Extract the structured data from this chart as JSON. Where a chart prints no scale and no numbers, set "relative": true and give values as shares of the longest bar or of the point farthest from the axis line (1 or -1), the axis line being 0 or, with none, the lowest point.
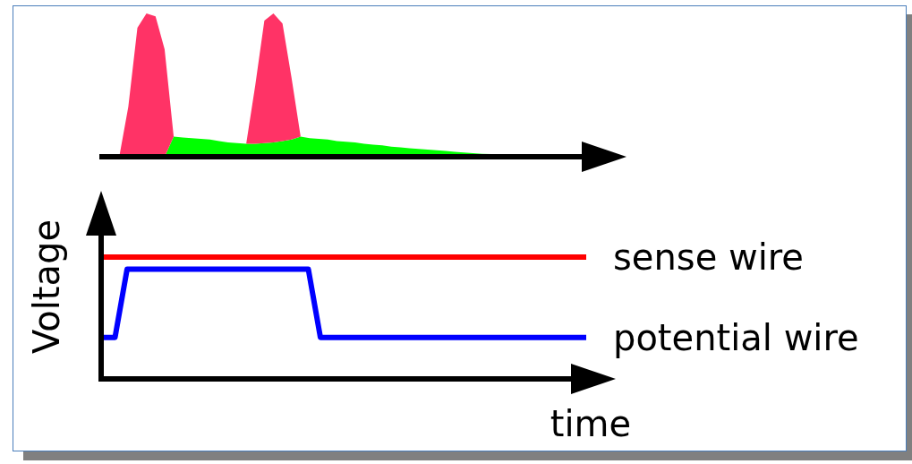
{
  "chart_data": [
    {
      "type": "area",
      "relative": true,
      "categories": [
        null,
        null,
        null,
        null,
        null,
        null,
        null,
        null,
        null,
        null,
        null,
        null,
        null,
        null,
        null,
        null,
        null,
        null,
        null,
        null,
        null,
        null,
        null,
        null,
        null,
        null,
        null,
        null,
        null,
        null,
        null,
        null,
        null,
        null,
        null,
        null,
        null,
        null,
        null,
        null,
        null,
        null,
        null,
        null,
        null,
        null,
        null,
        null,
        null,
        null,
        null,
        null,
        null,
        null
      ],
      "series": [
        {
          "color": "#00ff00",
          "values": [
            0,
            0,
            0,
            0,
            0,
            0,
            0,
            0,
            0.14,
            0.135,
            0.13,
            0.125,
            0.12,
            0.11,
            0.1,
            0.095,
            0.09,
            0.09,
            0.095,
            0.1,
            0.11,
            0.12,
            0.14,
            0.13,
            0.125,
            0.12,
            0.11,
            0.105,
            0.1,
            0.09,
            0.085,
            0.08,
            0.07,
            0.065,
            0.06,
            0.055,
            0.05,
            0.045,
            0.04,
            0.035,
            0.03,
            0.025,
            0.02,
            0.018,
            0.015,
            0.012,
            0.01,
            0.008,
            0.006,
            0.004,
            0.002,
            0,
            0,
            0
          ]
        },
        {
          "color": "#ff3366",
          "values": [
            0,
            0,
            0,
            0.35,
            0.9,
            1,
            0.98,
            0.75,
            0,
            0,
            0,
            0,
            0,
            0,
            0,
            0,
            0,
            0.41,
            0.855,
            0.9,
            0.82,
            0.43,
            0,
            0,
            0,
            0,
            0,
            0,
            0,
            0,
            0,
            0,
            0,
            0,
            0,
            0,
            0,
            0,
            0,
            0,
            0,
            0,
            0,
            0,
            0,
            0,
            0,
            0,
            0,
            0,
            0,
            0,
            0,
            0
          ]
        }
      ],
      "stacked": true
    },
    {
      "type": "line",
      "relative": true,
      "xlabel": "time",
      "ylabel": "Voltage",
      "categories": [
        null,
        null,
        null,
        null,
        null,
        null,
        null,
        null,
        null,
        null,
        null,
        null,
        null,
        null,
        null,
        null,
        null,
        null,
        null,
        null,
        null,
        null,
        null,
        null,
        null,
        null,
        null,
        null,
        null,
        null,
        null,
        null,
        null,
        null,
        null,
        null,
        null,
        null,
        null,
        null,
        null
      ],
      "series": [
        {
          "name": "sense wire",
          "color": "#ff0000",
          "values": [
            1,
            1,
            1,
            1,
            1,
            1,
            1,
            1,
            1,
            1,
            1,
            1,
            1,
            1,
            1,
            1,
            1,
            1,
            1,
            1,
            1,
            1,
            1,
            1,
            1,
            1,
            1,
            1,
            1,
            1,
            1,
            1,
            1,
            1,
            1,
            1,
            1,
            1,
            1,
            1,
            1
          ]
        },
        {
          "name": "potential wire",
          "color": "#0000ff",
          "values": [
            0.34,
            0.34,
            0.9,
            0.9,
            0.9,
            0.9,
            0.9,
            0.9,
            0.9,
            0.9,
            0.9,
            0.9,
            0.9,
            0.9,
            0.9,
            0.9,
            0.9,
            0.9,
            0.34,
            0.34,
            0.34,
            0.34,
            0.34,
            0.34,
            0.34,
            0.34,
            0.34,
            0.34,
            0.34,
            0.34,
            0.34,
            0.34,
            0.34,
            0.34,
            0.34,
            0.34,
            0.34,
            0.34,
            0.34,
            0.34,
            0.34
          ]
        }
      ]
    }
  ]
}
